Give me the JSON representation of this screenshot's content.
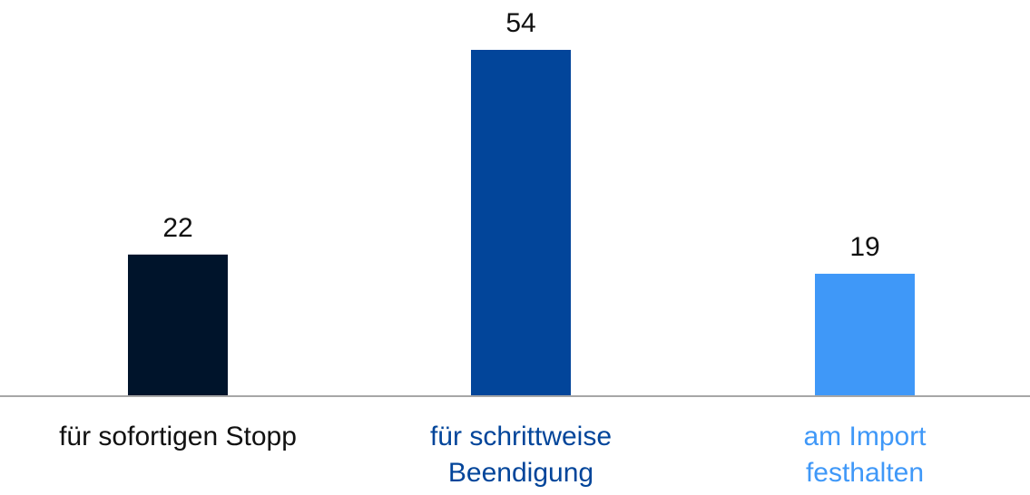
{
  "chart_data": {
    "type": "bar",
    "categories": [
      "für sofortigen Stopp",
      "für schrittweise\nBeendigung",
      "am Import\nfesthalten"
    ],
    "values": [
      22,
      54,
      19
    ],
    "colors": [
      "#00142b",
      "#02459a",
      "#3f98f8"
    ],
    "label_colors": [
      "#111111",
      "#02459a",
      "#3f98f8"
    ]
  }
}
